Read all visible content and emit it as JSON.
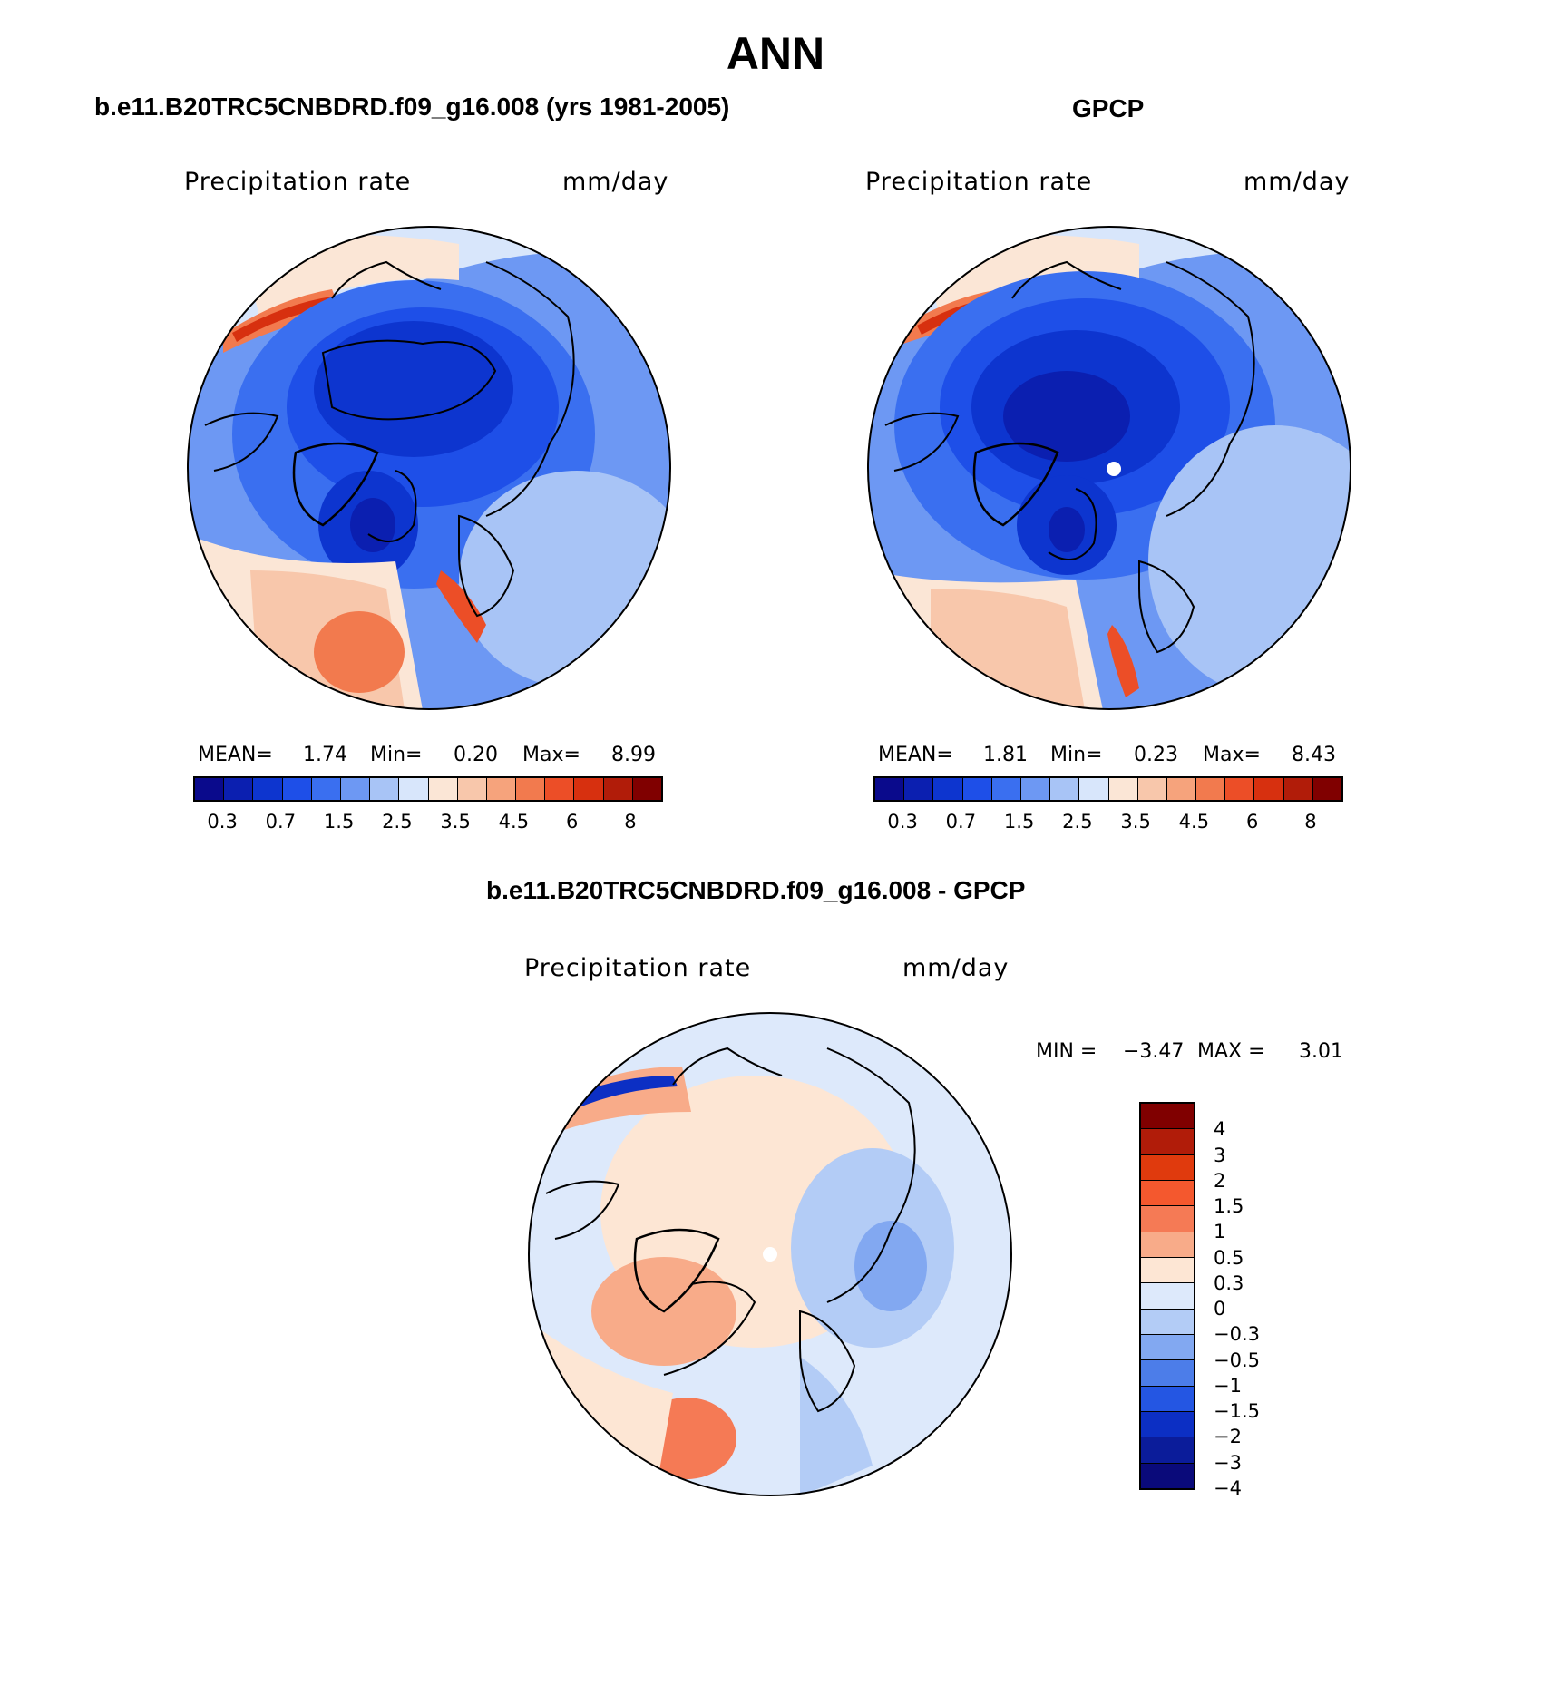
{
  "main_title": "ANN",
  "panels": [
    {
      "title": "b.e11.B20TRC5CNBDRD.f09_g16.008 (yrs 1981-2005)",
      "variable": "Precipitation rate",
      "units": "mm/day",
      "mean_label": "MEAN=",
      "mean": "1.74",
      "min_label": "Min=",
      "min": "0.20",
      "max_label": "Max=",
      "max": "8.99"
    },
    {
      "title": "GPCP",
      "variable": "Precipitation rate",
      "units": "mm/day",
      "mean_label": "MEAN=",
      "mean": "1.81",
      "min_label": "Min=",
      "min": "0.23",
      "max_label": "Max=",
      "max": "8.43"
    },
    {
      "title": "b.e11.B20TRC5CNBDRD.f09_g16.008 - GPCP",
      "variable": "Precipitation rate",
      "units": "mm/day",
      "min_label": "MIN =",
      "min": "−3.47",
      "max_label": "MAX =",
      "max": "3.01"
    }
  ],
  "colorbar_abs": {
    "colors": [
      "#0a0a8c",
      "#0b1fb0",
      "#0d35cf",
      "#1e4fe8",
      "#3a6ff0",
      "#6d98f3",
      "#a8c4f6",
      "#d8e6fb",
      "#fbe6d6",
      "#f8c7ab",
      "#f6a37c",
      "#f27a4e",
      "#ec4e27",
      "#d7300f",
      "#b11c09",
      "#800000"
    ],
    "ticks": [
      "0.3",
      "0.7",
      "1.5",
      "2.5",
      "3.5",
      "4.5",
      "6",
      "8"
    ]
  },
  "colorbar_diff": {
    "colors": [
      "#800000",
      "#b11c09",
      "#e03a0d",
      "#f4582e",
      "#f57a55",
      "#f8ab89",
      "#fde6d4",
      "#dde9fb",
      "#b3ccf6",
      "#82a8f1",
      "#4c7de9",
      "#2456e3",
      "#0c2fc4",
      "#0b1c9a",
      "#0a0a7a"
    ],
    "ticks": [
      "4",
      "3",
      "2",
      "1.5",
      "1",
      "0.5",
      "0.3",
      "0",
      "−0.3",
      "−0.5",
      "−1",
      "−1.5",
      "−2",
      "−3",
      "−4"
    ]
  }
}
